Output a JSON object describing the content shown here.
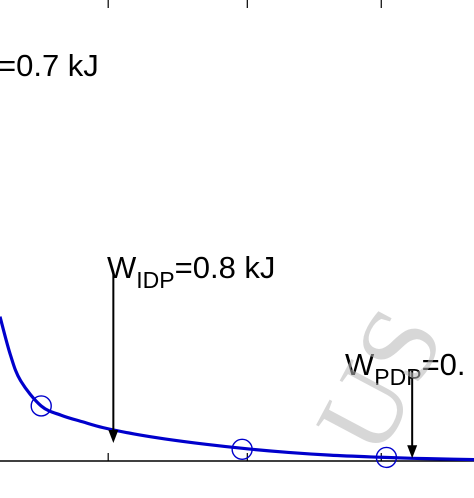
{
  "chart_data": {
    "type": "line",
    "title": "",
    "xlabel": "",
    "ylabel": "",
    "xlim": [
      0,
      4.6
    ],
    "ylim": [
      0,
      1
    ],
    "grid": false,
    "colors": {
      "line": "#0000cc",
      "marker": "#0000cc",
      "axis": "#000000"
    },
    "series": [
      {
        "marker": "circle",
        "x": [
          0.0,
          0.1,
          0.2,
          0.4,
          0.6,
          0.8,
          1.0,
          1.3,
          1.6,
          2.0,
          2.4,
          2.8,
          3.2,
          3.6,
          4.0,
          4.4,
          4.6
        ],
        "y": [
          0.32,
          0.236,
          0.178,
          0.122,
          0.101,
          0.087,
          0.074,
          0.06,
          0.049,
          0.037,
          0.027,
          0.019,
          0.013,
          0.009,
          0.006,
          0.004,
          0.003
        ]
      }
    ],
    "markers": [
      {
        "x": 0.4,
        "y": 0.122
      },
      {
        "x": 2.35,
        "y": 0.026
      },
      {
        "x": 3.75,
        "y": 0.008
      }
    ],
    "annotations": [
      {
        "id": "top",
        "main": "=0.7 kJ",
        "sub": ""
      },
      {
        "id": "idp",
        "main": "W",
        "sub": "IDP",
        "rest": "=0.8 kJ",
        "arrow_x": 1.1,
        "arrow_y_from": 0.42,
        "arrow_y_to": 0.04
      },
      {
        "id": "pdp",
        "main": "W",
        "sub": "PDP",
        "rest": "=0.",
        "arrow_x": 4.0,
        "arrow_y_from": 0.2,
        "arrow_y_to": 0.006
      }
    ],
    "x_ticks": [
      1.05,
      2.4,
      3.7
    ],
    "watermark": "US"
  }
}
